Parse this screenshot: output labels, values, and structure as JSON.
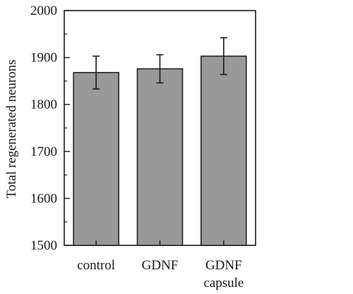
{
  "chart_data": {
    "type": "bar",
    "categories": [
      [
        "control"
      ],
      [
        "GDNF"
      ],
      [
        "GDNF",
        "capsule"
      ]
    ],
    "values": [
      1868,
      1876,
      1903
    ],
    "error": [
      35,
      30,
      39
    ],
    "ylabel": "Total regenerated neurons",
    "xlabel": "",
    "ylim": [
      1500,
      2000
    ],
    "yticks": [
      1500,
      1600,
      1700,
      1800,
      1900,
      2000
    ],
    "grid": false,
    "bar_color": "#999999",
    "edge_color": "#222222"
  }
}
